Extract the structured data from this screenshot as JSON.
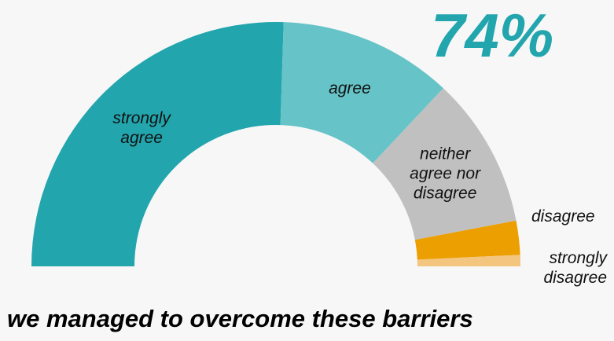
{
  "headline": "74%",
  "caption": "we managed to overcome these barriers",
  "chart_data": {
    "type": "pie",
    "variant": "half-donut",
    "categories": [
      "strongly agree",
      "agree",
      "neither agree nor disagree",
      "disagree",
      "strongly disagree"
    ],
    "values": [
      51,
      23,
      20,
      4.5,
      1.5
    ],
    "colors": [
      "#22a5ad",
      "#66c3c7",
      "#c0c0c0",
      "#eb9f00",
      "#f3c57e"
    ],
    "legend": "none",
    "data_labels": [
      "strongly agree",
      "agree",
      "neither agree nor disagree",
      "disagree",
      "strongly disagree"
    ]
  }
}
